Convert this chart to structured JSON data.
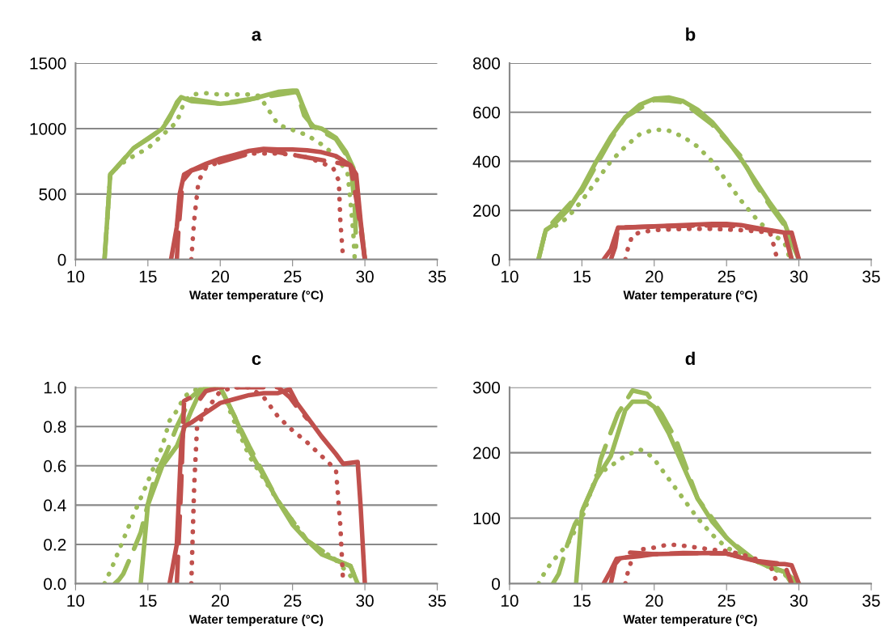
{
  "chart_data": [
    {
      "type": "line",
      "title": "a",
      "xlabel": "Water temperature (°C)",
      "xlim": [
        10,
        35
      ],
      "xticks": [
        10,
        15,
        20,
        25,
        30,
        35
      ],
      "ylim": [
        0,
        1500
      ],
      "yticks": [
        0,
        500,
        1000,
        1500
      ],
      "grid": "y",
      "legend": false,
      "marker": "none",
      "series": [
        {
          "color": "#9bbb59",
          "line_style": "dashed",
          "x": [
            12,
            12.4,
            14,
            16,
            17.3,
            20,
            25.3,
            25.8,
            26.5,
            28,
            29,
            29.3,
            29.4
          ],
          "values": [
            0,
            650,
            850,
            1000,
            1240,
            1190,
            1280,
            1100,
            1010,
            920,
            750,
            400,
            100
          ]
        },
        {
          "color": "#9bbb59",
          "line_style": "dotted",
          "x": [
            12,
            12.4,
            13,
            14,
            15,
            16,
            17,
            17.5,
            18,
            19,
            20,
            22,
            22.7,
            23.3,
            24,
            25,
            26,
            27,
            28,
            28.8,
            29,
            29.2,
            29.3
          ],
          "values": [
            0,
            650,
            720,
            790,
            850,
            950,
            1050,
            1200,
            1260,
            1270,
            1260,
            1260,
            1250,
            1150,
            1030,
            990,
            950,
            880,
            790,
            660,
            450,
            200,
            0
          ]
        },
        {
          "color": "#9bbb59",
          "line_style": "solid",
          "x": [
            12,
            12.4,
            13,
            14,
            15,
            16,
            16.5,
            17,
            17.3,
            18,
            19,
            20,
            21,
            22,
            23,
            24,
            25,
            25.3,
            25.8,
            26.3,
            27,
            28,
            28.7,
            29.2,
            29.5,
            29.8,
            30
          ],
          "values": [
            0,
            650,
            720,
            850,
            920,
            1000,
            1080,
            1200,
            1240,
            1210,
            1200,
            1190,
            1200,
            1220,
            1250,
            1280,
            1290,
            1290,
            1150,
            1020,
            1000,
            930,
            820,
            700,
            400,
            200,
            0
          ]
        },
        {
          "color": "#c0504d",
          "line_style": "dashed",
          "x": [
            17,
            17.1,
            17.4,
            18,
            23,
            29,
            29.5,
            30
          ],
          "values": [
            0,
            200,
            600,
            680,
            840,
            720,
            400,
            0
          ]
        },
        {
          "color": "#c0504d",
          "line_style": "dotted",
          "x": [
            18,
            18.2,
            18.5,
            19,
            20,
            21,
            22,
            23,
            24,
            25,
            26,
            27,
            27.8,
            28.2,
            28.3,
            28.5
          ],
          "values": [
            0,
            300,
            600,
            700,
            750,
            790,
            810,
            810,
            810,
            800,
            780,
            740,
            700,
            600,
            300,
            0
          ]
        },
        {
          "color": "#c0504d",
          "line_style": "solid",
          "x": [
            16.6,
            17,
            17.2,
            17.5,
            18,
            19,
            20,
            21,
            22,
            23,
            24,
            25,
            26,
            27,
            28,
            29,
            29.4,
            29.7,
            30
          ],
          "values": [
            0,
            250,
            500,
            650,
            680,
            730,
            770,
            800,
            830,
            845,
            840,
            840,
            835,
            820,
            790,
            720,
            650,
            300,
            0
          ]
        }
      ]
    },
    {
      "type": "line",
      "title": "b",
      "xlabel": "Water temperature (°C)",
      "xlim": [
        10,
        35
      ],
      "xticks": [
        10,
        15,
        20,
        25,
        30,
        35
      ],
      "ylim": [
        0,
        800
      ],
      "yticks": [
        0,
        200,
        400,
        600,
        800
      ],
      "grid": "y",
      "legend": false,
      "marker": "none",
      "series": [
        {
          "color": "#9bbb59",
          "line_style": "dashed",
          "x": [
            12,
            12.5,
            15,
            17,
            18,
            20,
            21,
            22,
            24,
            26,
            27,
            28,
            29,
            29.5
          ],
          "values": [
            0,
            120,
            280,
            490,
            580,
            650,
            648,
            640,
            550,
            420,
            310,
            220,
            140,
            0
          ]
        },
        {
          "color": "#9bbb59",
          "line_style": "dotted",
          "x": [
            12,
            12.5,
            13,
            14,
            15,
            16,
            17,
            18,
            19,
            20,
            21,
            22,
            23,
            24,
            25,
            26,
            27,
            28,
            29,
            29.4
          ],
          "values": [
            0,
            120,
            130,
            170,
            240,
            320,
            400,
            460,
            510,
            530,
            525,
            500,
            460,
            400,
            320,
            240,
            170,
            110,
            70,
            0
          ]
        },
        {
          "color": "#9bbb59",
          "line_style": "solid",
          "x": [
            12,
            12.5,
            13,
            14,
            15,
            16,
            17,
            18,
            19,
            20,
            21,
            22,
            23,
            24,
            25,
            26,
            27,
            28,
            29,
            29.5,
            30
          ],
          "values": [
            0,
            120,
            140,
            200,
            290,
            400,
            500,
            580,
            630,
            655,
            660,
            645,
            610,
            560,
            490,
            410,
            320,
            230,
            150,
            70,
            0
          ]
        },
        {
          "color": "#c0504d",
          "line_style": "dashed",
          "x": [
            17,
            17.3,
            17.5,
            20,
            25,
            29,
            29.5
          ],
          "values": [
            0,
            50,
            130,
            135,
            140,
            110,
            0
          ]
        },
        {
          "color": "#c0504d",
          "line_style": "dotted",
          "x": [
            18,
            18.2,
            18.5,
            19,
            20,
            22,
            24,
            26,
            27,
            28,
            28.3,
            28.5
          ],
          "values": [
            0,
            50,
            100,
            110,
            120,
            125,
            125,
            120,
            115,
            110,
            50,
            0
          ]
        },
        {
          "color": "#c0504d",
          "line_style": "solid",
          "x": [
            16.5,
            17,
            17.5,
            18,
            20,
            22,
            24,
            25,
            26,
            27,
            28,
            29,
            29.5,
            30
          ],
          "values": [
            0,
            40,
            130,
            130,
            135,
            140,
            145,
            145,
            140,
            130,
            120,
            110,
            110,
            0
          ]
        }
      ]
    },
    {
      "type": "line",
      "title": "c",
      "xlabel": "Water temperature (°C)",
      "xlim": [
        10,
        35
      ],
      "xticks": [
        10,
        15,
        20,
        25,
        30,
        35
      ],
      "ylim": [
        0,
        1
      ],
      "yticks": [
        {
          "value": 0,
          "label": "0.0"
        },
        {
          "value": 0.2,
          "label": "0.2"
        },
        {
          "value": 0.4,
          "label": "0.4"
        },
        {
          "value": 0.6,
          "label": "0.6"
        },
        {
          "value": 0.8,
          "label": "0.8"
        },
        {
          "value": 1,
          "label": "1.0"
        }
      ],
      "grid": "y",
      "legend": false,
      "marker": "none",
      "series": [
        {
          "color": "#9bbb59",
          "line_style": "dashed",
          "x": [
            12.7,
            13,
            13.3,
            14,
            14.5,
            15.5,
            16.3,
            17,
            18,
            18.8,
            20,
            22,
            24,
            26,
            28,
            29,
            29.5
          ],
          "values": [
            0,
            0.02,
            0.05,
            0.17,
            0.26,
            0.55,
            0.67,
            0.8,
            0.95,
            1.0,
            1.0,
            0.7,
            0.42,
            0.22,
            0.12,
            0.09,
            0
          ]
        },
        {
          "color": "#9bbb59",
          "line_style": "dotted",
          "x": [
            12,
            12.5,
            13,
            14,
            15,
            16,
            16.5,
            17,
            17.5,
            18,
            19,
            20,
            21,
            22,
            24,
            26,
            28,
            29.5
          ],
          "values": [
            0,
            0.08,
            0.17,
            0.35,
            0.52,
            0.7,
            0.83,
            0.88,
            0.95,
            0.98,
            1.0,
            1.0,
            0.82,
            0.65,
            0.42,
            0.22,
            0.12,
            0
          ]
        },
        {
          "color": "#9bbb59",
          "line_style": "solid",
          "x": [
            14.5,
            15,
            16,
            17,
            18,
            18.5,
            19,
            20,
            21,
            22,
            23,
            24,
            25,
            26,
            27,
            28,
            29,
            29.5
          ],
          "values": [
            0,
            0.4,
            0.6,
            0.7,
            0.88,
            0.96,
            1.0,
            1.0,
            0.85,
            0.68,
            0.55,
            0.42,
            0.3,
            0.22,
            0.15,
            0.12,
            0.09,
            0
          ]
        },
        {
          "color": "#c0504d",
          "line_style": "dashed",
          "x": [
            17,
            17.3,
            17.5,
            18,
            18.5,
            19,
            20,
            21,
            22,
            23,
            24,
            24.8,
            25.3,
            26
          ],
          "values": [
            0,
            0.5,
            0.93,
            0.95,
            0.93,
            0.98,
            1.0,
            1.0,
            1.0,
            1.0,
            1.0,
            0.95,
            0.9,
            0.84
          ]
        },
        {
          "color": "#c0504d",
          "line_style": "dotted",
          "x": [
            18,
            18.2,
            18.4,
            19,
            19.6,
            20,
            21,
            22,
            23,
            24,
            25,
            26,
            27,
            28,
            28.3,
            28.5
          ],
          "values": [
            0,
            0.5,
            0.8,
            0.88,
            0.94,
            0.98,
            1.0,
            1.0,
            0.95,
            0.85,
            0.78,
            0.72,
            0.65,
            0.58,
            0.3,
            0
          ]
        },
        {
          "color": "#c0504d",
          "line_style": "solid",
          "x": [
            16.5,
            17,
            17.3,
            17.5,
            18,
            19,
            20,
            21,
            22,
            23,
            24,
            24.8,
            25.3,
            26,
            27,
            28,
            28.5,
            29.5,
            29.7,
            30
          ],
          "values": [
            0,
            0.2,
            0.7,
            0.8,
            0.82,
            0.87,
            0.92,
            0.94,
            0.96,
            0.97,
            0.97,
            0.99,
            0.92,
            0.85,
            0.75,
            0.66,
            0.61,
            0.62,
            0.4,
            0
          ]
        }
      ]
    },
    {
      "type": "line",
      "title": "d",
      "xlabel": "Water temperature (°C)",
      "xlim": [
        10,
        35
      ],
      "xticks": [
        10,
        15,
        20,
        25,
        30,
        35
      ],
      "ylim": [
        0,
        300
      ],
      "yticks": [
        0,
        100,
        200,
        300
      ],
      "grid": "y",
      "legend": false,
      "marker": "none",
      "series": [
        {
          "color": "#9bbb59",
          "line_style": "dashed",
          "x": [
            13,
            13.4,
            14,
            14.5,
            15,
            16,
            16.3,
            16.8,
            17.5,
            18.5,
            19.5,
            20.5,
            21.5,
            23,
            25,
            27,
            29,
            29.5
          ],
          "values": [
            0,
            15,
            60,
            90,
            110,
            160,
            190,
            220,
            260,
            295,
            290,
            260,
            220,
            130,
            70,
            35,
            18,
            0
          ]
        },
        {
          "color": "#9bbb59",
          "line_style": "dotted",
          "x": [
            12,
            12.5,
            13,
            14,
            15,
            16,
            17,
            18,
            19,
            19.5,
            20,
            21,
            22,
            23,
            24,
            25,
            26,
            27,
            28,
            29,
            29.5
          ],
          "values": [
            0,
            20,
            35,
            60,
            100,
            165,
            180,
            195,
            205,
            200,
            190,
            160,
            130,
            100,
            75,
            55,
            45,
            35,
            25,
            15,
            0
          ]
        },
        {
          "color": "#9bbb59",
          "line_style": "solid",
          "x": [
            14.6,
            15,
            16,
            17,
            17.5,
            18,
            18.5,
            19.5,
            20,
            21,
            22,
            23,
            24,
            25,
            26,
            27,
            28,
            29,
            30
          ],
          "values": [
            0,
            110,
            160,
            195,
            230,
            265,
            278,
            278,
            270,
            230,
            180,
            130,
            95,
            70,
            50,
            35,
            25,
            18,
            0
          ]
        },
        {
          "color": "#c0504d",
          "line_style": "dashed",
          "x": [
            17,
            17.3,
            18,
            20,
            22,
            25,
            27,
            29,
            29.5
          ],
          "values": [
            0,
            30,
            48,
            45,
            47,
            46,
            35,
            30,
            0
          ]
        },
        {
          "color": "#c0504d",
          "line_style": "dotted",
          "x": [
            18,
            18.2,
            18.5,
            19,
            20,
            21,
            22,
            23,
            24,
            25,
            26,
            27,
            28,
            28.3,
            28.5
          ],
          "values": [
            0,
            20,
            40,
            52,
            55,
            60,
            58,
            55,
            52,
            50,
            45,
            38,
            30,
            12,
            0
          ]
        },
        {
          "color": "#c0504d",
          "line_style": "solid",
          "x": [
            16.5,
            17,
            17.4,
            18,
            19,
            20,
            22,
            24,
            25,
            26,
            27,
            28,
            29,
            29.5,
            30
          ],
          "values": [
            0,
            20,
            38,
            40,
            42,
            45,
            46,
            47,
            46,
            40,
            35,
            30,
            30,
            28,
            0
          ]
        }
      ]
    }
  ]
}
